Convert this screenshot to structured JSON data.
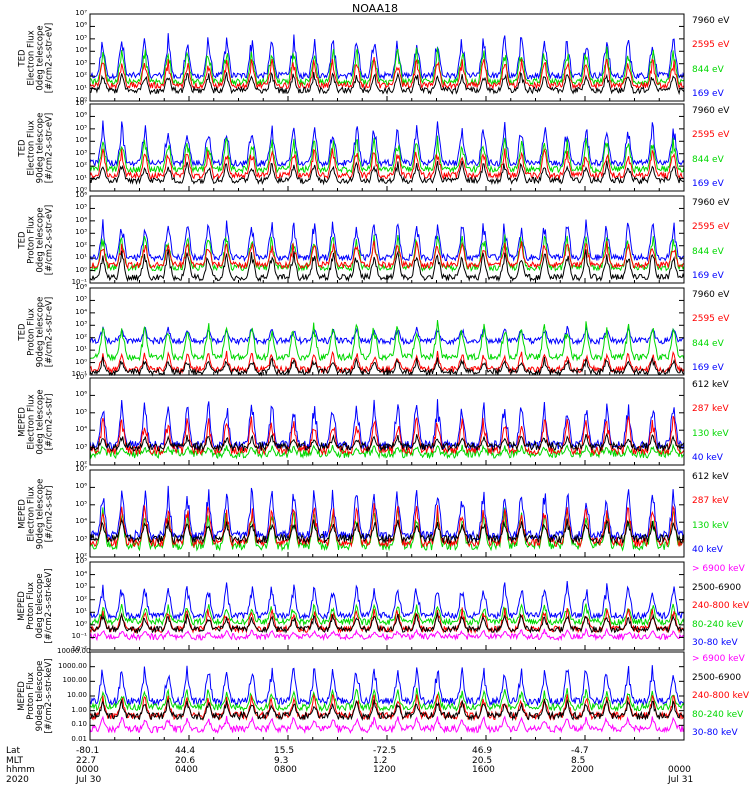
{
  "title": "NOAA18",
  "colors": {
    "blue": "#0000ff",
    "red": "#ff0000",
    "green": "#00d800",
    "black": "#000000",
    "magenta": "#ff00ff"
  },
  "chart_data": [
    {
      "type": "line",
      "ylabel_lines": [
        "TED",
        "Electron Flux",
        "0deg telescope",
        "[#/cm2-s-str-eV]"
      ],
      "log": true,
      "yticks": [
        "10⁰",
        "10¹",
        "10²",
        "10³",
        "10⁴",
        "10⁵",
        "10⁶",
        "10⁷"
      ],
      "ylim": [
        0,
        7
      ],
      "series": [
        {
          "name": "7960 eV",
          "color": "black",
          "level": [
            0.6,
            2.5
          ]
        },
        {
          "name": "2595 eV",
          "color": "red",
          "level": [
            1.0,
            3.6
          ]
        },
        {
          "name": "844 eV",
          "color": "green",
          "level": [
            1.3,
            4.6
          ]
        },
        {
          "name": "169 eV",
          "color": "blue",
          "level": [
            1.8,
            5.6
          ]
        }
      ]
    },
    {
      "type": "line",
      "ylabel_lines": [
        "TED",
        "Electron Flux",
        "90deg telescope",
        "[#/cm2-s-str-eV]"
      ],
      "log": true,
      "yticks": [
        "10⁰",
        "10¹",
        "10²",
        "10³",
        "10⁴",
        "10⁵",
        "10⁶",
        "10⁷"
      ],
      "ylim": [
        0,
        7
      ],
      "series": [
        {
          "name": "7960 eV",
          "color": "black",
          "level": [
            0.6,
            2.5
          ]
        },
        {
          "name": "2595 eV",
          "color": "red",
          "level": [
            1.0,
            3.6
          ]
        },
        {
          "name": "844 eV",
          "color": "green",
          "level": [
            1.5,
            4.5
          ]
        },
        {
          "name": "169 eV",
          "color": "blue",
          "level": [
            2.0,
            5.8
          ]
        }
      ]
    },
    {
      "type": "line",
      "ylabel_lines": [
        "TED",
        "Proton Flux",
        "0deg telescope",
        "[#/cm2-s-str-eV]"
      ],
      "log": true,
      "yticks": [
        "10⁻¹",
        "10⁰",
        "10¹",
        "10²",
        "10³",
        "10⁴",
        "10⁵",
        "10⁶"
      ],
      "ylim": [
        -1,
        6
      ],
      "series": [
        {
          "name": "7960 eV",
          "color": "black",
          "level": [
            -0.8,
            1.8
          ]
        },
        {
          "name": "2595 eV",
          "color": "red",
          "level": [
            0.2,
            2.5
          ]
        },
        {
          "name": "844 eV",
          "color": "green",
          "level": [
            0.0,
            3.2
          ]
        },
        {
          "name": "169 eV",
          "color": "blue",
          "level": [
            0.8,
            4.3
          ]
        }
      ]
    },
    {
      "type": "line",
      "ylabel_lines": [
        "TED",
        "Proton Flux",
        "90deg telescope",
        "[#/cm2-s-str-eV]"
      ],
      "log": true,
      "yticks": [
        "10⁻¹",
        "10⁰",
        "10¹",
        "10²",
        "10³",
        "10⁴",
        "10⁵",
        "10⁶"
      ],
      "ylim": [
        -1,
        6
      ],
      "series": [
        {
          "name": "7960 eV",
          "color": "black",
          "level": [
            -1.0,
            0.5
          ]
        },
        {
          "name": "2595 eV",
          "color": "red",
          "level": [
            -0.8,
            1.0
          ]
        },
        {
          "name": "844 eV",
          "color": "green",
          "level": [
            0.2,
            3.5
          ]
        },
        {
          "name": "169 eV",
          "color": "blue",
          "level": [
            1.5,
            3.0
          ]
        }
      ]
    },
    {
      "type": "line",
      "ylabel_lines": [
        "MEPED",
        "Electron Flux",
        "0deg telescope",
        "[#/cm2-s-str]"
      ],
      "log": true,
      "yticks": [
        "10²",
        "10³",
        "10⁴",
        "10⁵",
        "10⁶",
        "10⁷"
      ],
      "ylim": [
        2,
        7
      ],
      "series": [
        {
          "name": "612 keV",
          "color": "black",
          "level": [
            2.8,
            3.8
          ]
        },
        {
          "name": "287 keV",
          "color": "red",
          "level": [
            2.6,
            5.0
          ]
        },
        {
          "name": "130 keV",
          "color": "green",
          "level": [
            2.4,
            3.2
          ]
        },
        {
          "name": "40 keV",
          "color": "blue",
          "level": [
            2.9,
            6.0
          ]
        }
      ]
    },
    {
      "type": "line",
      "ylabel_lines": [
        "MEPED",
        "Electron Flux",
        "90deg telescope",
        "[#/cm2-s-str]"
      ],
      "log": true,
      "yticks": [
        "10²",
        "10³",
        "10⁴",
        "10⁵",
        "10⁶",
        "10⁷"
      ],
      "ylim": [
        2,
        7
      ],
      "series": [
        {
          "name": "612 keV",
          "color": "black",
          "level": [
            2.8,
            4.3
          ]
        },
        {
          "name": "287 keV",
          "color": "red",
          "level": [
            2.6,
            5.2
          ]
        },
        {
          "name": "130 keV",
          "color": "green",
          "level": [
            2.4,
            5.0
          ]
        },
        {
          "name": "40 keV",
          "color": "blue",
          "level": [
            3.0,
            6.2
          ]
        }
      ]
    },
    {
      "type": "line",
      "ylabel_lines": [
        "MEPED",
        "Proton Flux",
        "0deg telescope",
        "[#/cm2-s-str-keV]"
      ],
      "log": true,
      "yticks": [
        "10⁻²",
        "10⁻¹",
        "10⁰",
        "10¹",
        "10²",
        "10³",
        "10⁴",
        "10⁵"
      ],
      "ylim": [
        -2,
        5
      ],
      "series": [
        {
          "name": "> 6900 keV",
          "color": "magenta",
          "level": [
            -1.2,
            -0.3
          ]
        },
        {
          "name": "2500-6900",
          "color": "black",
          "level": [
            -0.6,
            1.0
          ]
        },
        {
          "name": "240-800 keV",
          "color": "red",
          "level": [
            -0.6,
            1.5
          ]
        },
        {
          "name": "80-240 keV",
          "color": "green",
          "level": [
            0.0,
            1.8
          ]
        },
        {
          "name": "30-80 keV",
          "color": "blue",
          "level": [
            0.5,
            3.5
          ]
        }
      ]
    },
    {
      "type": "line",
      "ylabel_lines": [
        "MEPED",
        "Proton Flux",
        "90deg telescope",
        "[#/cm2-s-str-keV]"
      ],
      "log": true,
      "yticks": [
        "0.01",
        "0.10",
        "1.00",
        "10.00",
        "100.00",
        "1000.00",
        "10000.00"
      ],
      "ylim": [
        -2,
        4
      ],
      "series": [
        {
          "name": "> 6900 keV",
          "color": "magenta",
          "level": [
            -1.5,
            -0.3
          ]
        },
        {
          "name": "2500-6900",
          "color": "black",
          "level": [
            -0.6,
            0.8
          ]
        },
        {
          "name": "240-800 keV",
          "color": "red",
          "level": [
            -0.6,
            1.2
          ]
        },
        {
          "name": "80-240 keV",
          "color": "green",
          "level": [
            0.0,
            1.6
          ]
        },
        {
          "name": "30-80 keV",
          "color": "blue",
          "level": [
            0.4,
            3.3
          ]
        }
      ]
    }
  ],
  "xaxis": {
    "row_labels": [
      "Lat",
      "MLT",
      "hhmm",
      "2020"
    ],
    "ticks": [
      {
        "lat": "-80.1",
        "mlt": "22.7",
        "hhmm": "0000",
        "date": "Jul 30"
      },
      {
        "lat": "44.4",
        "mlt": "20.6",
        "hhmm": "0400",
        "date": ""
      },
      {
        "lat": "15.5",
        "mlt": "9.3",
        "hhmm": "0800",
        "date": ""
      },
      {
        "lat": "-72.5",
        "mlt": "1.2",
        "hhmm": "1200",
        "date": ""
      },
      {
        "lat": "46.9",
        "mlt": "20.5",
        "hhmm": "1600",
        "date": ""
      },
      {
        "lat": "-4.7",
        "mlt": "8.5",
        "hhmm": "2000",
        "date": ""
      },
      {
        "lat": "",
        "mlt": "",
        "hhmm": "0000",
        "date": "Jul 31"
      }
    ]
  }
}
